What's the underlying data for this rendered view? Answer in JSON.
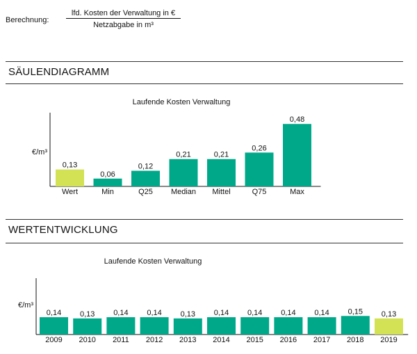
{
  "formula": {
    "label": "Berechnung:",
    "numerator": "lfd. Kosten der Verwaltung in €",
    "denominator": "Netzabgabe in m³"
  },
  "colors": {
    "highlight": "#d3e155",
    "bar": "#00a88a"
  },
  "sections": {
    "bar": "SÄULENDIAGRAMM",
    "trend": "WERTENTWICKLUNG"
  },
  "chart_data": [
    {
      "type": "bar",
      "title": "Laufende Kosten Verwaltung",
      "ylabel": "€/m³",
      "xlabel": "",
      "categories": [
        "Wert",
        "Min",
        "Q25",
        "Median",
        "Mittel",
        "Q75",
        "Max"
      ],
      "values": [
        0.13,
        0.06,
        0.12,
        0.21,
        0.21,
        0.26,
        0.48
      ],
      "labels": [
        "0,13",
        "0,06",
        "0,12",
        "0,21",
        "0,21",
        "0,26",
        "0,48"
      ],
      "highlight": [
        0
      ],
      "ylim": [
        0,
        0.5
      ]
    },
    {
      "type": "bar",
      "title": "Laufende Kosten Verwaltung",
      "ylabel": "€/m³",
      "xlabel": "",
      "categories": [
        "2009",
        "2010",
        "2011",
        "2012",
        "2013",
        "2014",
        "2015",
        "2016",
        "2017",
        "2018",
        "2019"
      ],
      "values": [
        0.14,
        0.13,
        0.14,
        0.14,
        0.13,
        0.14,
        0.14,
        0.14,
        0.14,
        0.15,
        0.13
      ],
      "labels": [
        "0,14",
        "0,13",
        "0,14",
        "0,14",
        "0,13",
        "0,14",
        "0,14",
        "0,14",
        "0,14",
        "0,15",
        "0,13"
      ],
      "highlight": [
        10
      ],
      "ylim": [
        0,
        0.2
      ]
    }
  ]
}
